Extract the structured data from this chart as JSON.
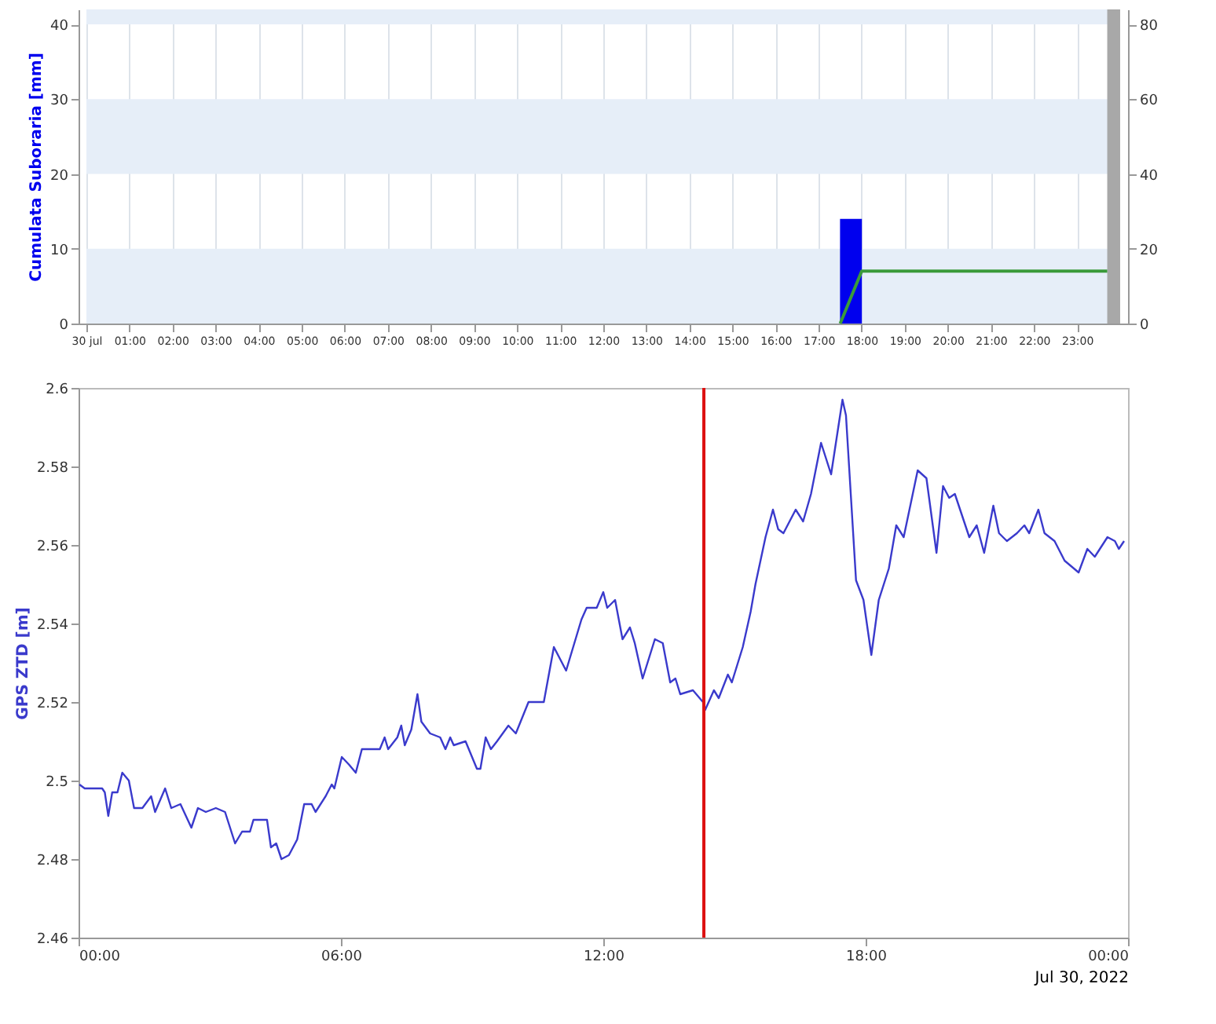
{
  "chart_data": [
    {
      "type": "bar",
      "ylabel": "Cumulata Suboraria [mm]",
      "xlim": [
        0,
        24
      ],
      "xticks": [
        {
          "value": 0,
          "label": "30 jul"
        },
        {
          "value": 1,
          "label": "01:00"
        },
        {
          "value": 2,
          "label": "02:00"
        },
        {
          "value": 3,
          "label": "03:00"
        },
        {
          "value": 4,
          "label": "04:00"
        },
        {
          "value": 5,
          "label": "05:00"
        },
        {
          "value": 6,
          "label": "06:00"
        },
        {
          "value": 7,
          "label": "07:00"
        },
        {
          "value": 8,
          "label": "08:00"
        },
        {
          "value": 9,
          "label": "09:00"
        },
        {
          "value": 10,
          "label": "10:00"
        },
        {
          "value": 11,
          "label": "11:00"
        },
        {
          "value": 12,
          "label": "12:00"
        },
        {
          "value": 13,
          "label": "13:00"
        },
        {
          "value": 14,
          "label": "14:00"
        },
        {
          "value": 15,
          "label": "15:00"
        },
        {
          "value": 16,
          "label": "16:00"
        },
        {
          "value": 17,
          "label": "17:00"
        },
        {
          "value": 18,
          "label": "18:00"
        },
        {
          "value": 19,
          "label": "19:00"
        },
        {
          "value": 20,
          "label": "20:00"
        },
        {
          "value": 21,
          "label": "21:00"
        },
        {
          "value": 22,
          "label": "22:00"
        },
        {
          "value": 23,
          "label": "23:00"
        }
      ],
      "ylim": [
        0,
        42
      ],
      "yticks": [
        0,
        10,
        20,
        30,
        40
      ],
      "y2lim": [
        0,
        84
      ],
      "y2ticks": [
        0,
        20,
        40,
        60,
        80
      ],
      "grid": "x",
      "series": [
        {
          "type": "bar",
          "color": "#0000ee",
          "x": [
            17.75
          ],
          "values": [
            14
          ]
        },
        {
          "type": "line",
          "axis": "y2",
          "color": "#3a9a3a",
          "x": [
            17.5,
            18,
            23.7
          ],
          "values": [
            0,
            14,
            14
          ]
        }
      ],
      "bands": [
        {
          "axis": "y",
          "from": 0,
          "to": 10,
          "color": "#e6eef8"
        },
        {
          "axis": "y",
          "from": 20,
          "to": 30,
          "color": "#e6eef8"
        },
        {
          "axis": "y",
          "from": 40,
          "to": 42,
          "color": "#e6eef8"
        },
        {
          "axis": "x",
          "from": 23.7,
          "to": 24,
          "color": "#a8a8a8"
        }
      ]
    },
    {
      "type": "line",
      "ylabel": "GPS ZTD [m]",
      "xlabel": "Jul 30, 2022",
      "xlim": [
        0,
        24
      ],
      "xticks": [
        {
          "value": 0,
          "label": "00:00"
        },
        {
          "value": 6,
          "label": "06:00"
        },
        {
          "value": 12,
          "label": "12:00"
        },
        {
          "value": 18,
          "label": "18:00"
        },
        {
          "value": 24,
          "label": "00:00"
        }
      ],
      "ylim": [
        2.46,
        2.6
      ],
      "yticks": [
        2.46,
        2.48,
        2.5,
        2.52,
        2.54,
        2.56,
        2.58,
        2.6
      ],
      "series": [
        {
          "color": "#3a3acc",
          "x": [
            0.02,
            0.14,
            0.54,
            0.6,
            0.68,
            0.77,
            0.89,
            1.0,
            1.15,
            1.27,
            1.46,
            1.66,
            1.75,
            1.98,
            2.12,
            2.33,
            2.58,
            2.73,
            2.91,
            3.14,
            3.35,
            3.58,
            3.74,
            3.92,
            4.0,
            4.18,
            4.31,
            4.4,
            4.52,
            4.64,
            4.81,
            5.0,
            5.16,
            5.33,
            5.42,
            5.65,
            5.79,
            5.85,
            6.02,
            6.19,
            6.34,
            6.48,
            6.71,
            6.89,
            7.0,
            7.08,
            7.29,
            7.38,
            7.46,
            7.61,
            7.75,
            7.84,
            8.04,
            8.27,
            8.39,
            8.5,
            8.58,
            8.85,
            9.11,
            9.19,
            9.31,
            9.43,
            9.57,
            9.83,
            10.0,
            10.29,
            10.52,
            10.64,
            10.87,
            11.15,
            11.5,
            11.62,
            11.85,
            12.0,
            12.09,
            12.27,
            12.44,
            12.61,
            12.72,
            12.9,
            13.18,
            13.36,
            13.53,
            13.65,
            13.76,
            14.05,
            14.28,
            14.33,
            14.53,
            14.64,
            14.85,
            14.94,
            15.19,
            15.37,
            15.48,
            15.71,
            15.88,
            16.0,
            16.12,
            16.4,
            16.57,
            16.75,
            16.98,
            17.21,
            17.47,
            17.55,
            17.78,
            17.95,
            18.13,
            18.3,
            18.53,
            18.7,
            18.87,
            19.19,
            19.39,
            19.62,
            19.77,
            19.91,
            20.04,
            20.37,
            20.54,
            20.71,
            20.92,
            21.05,
            21.23,
            21.46,
            21.63,
            21.74,
            21.95,
            22.09,
            22.32,
            22.55,
            22.87,
            23.07,
            23.24,
            23.53,
            23.7,
            23.79,
            23.91
          ],
          "values": [
            2.499,
            2.498,
            2.498,
            2.497,
            2.491,
            2.497,
            2.497,
            2.502,
            2.5,
            2.493,
            2.493,
            2.496,
            2.492,
            2.498,
            2.493,
            2.494,
            2.488,
            2.493,
            2.492,
            2.493,
            2.492,
            2.484,
            2.487,
            2.487,
            2.49,
            2.49,
            2.49,
            2.483,
            2.484,
            2.48,
            2.481,
            2.485,
            2.494,
            2.494,
            2.492,
            2.496,
            2.499,
            2.498,
            2.506,
            2.504,
            2.502,
            2.508,
            2.508,
            2.508,
            2.511,
            2.508,
            2.511,
            2.514,
            2.509,
            2.513,
            2.522,
            2.515,
            2.512,
            2.511,
            2.508,
            2.511,
            2.509,
            2.51,
            2.503,
            2.503,
            2.511,
            2.508,
            2.51,
            2.514,
            2.512,
            2.52,
            2.52,
            2.52,
            2.534,
            2.528,
            2.541,
            2.544,
            2.544,
            2.548,
            2.544,
            2.546,
            2.536,
            2.539,
            2.535,
            2.526,
            2.536,
            2.535,
            2.525,
            2.526,
            2.522,
            2.523,
            2.52,
            2.518,
            2.523,
            2.521,
            2.527,
            2.525,
            2.534,
            2.543,
            2.55,
            2.562,
            2.569,
            2.564,
            2.563,
            2.569,
            2.566,
            2.573,
            2.586,
            2.578,
            2.597,
            2.593,
            2.551,
            2.546,
            2.532,
            2.546,
            2.554,
            2.565,
            2.562,
            2.579,
            2.577,
            2.558,
            2.575,
            2.572,
            2.573,
            2.562,
            2.565,
            2.558,
            2.57,
            2.563,
            2.561,
            2.563,
            2.565,
            2.563,
            2.569,
            2.563,
            2.561,
            2.556,
            2.553,
            2.559,
            2.557,
            2.562,
            2.561,
            2.559,
            2.561
          ]
        }
      ],
      "ref_lines": [
        {
          "axis": "x",
          "value": 14.3,
          "color": "#dd1111"
        }
      ]
    }
  ]
}
